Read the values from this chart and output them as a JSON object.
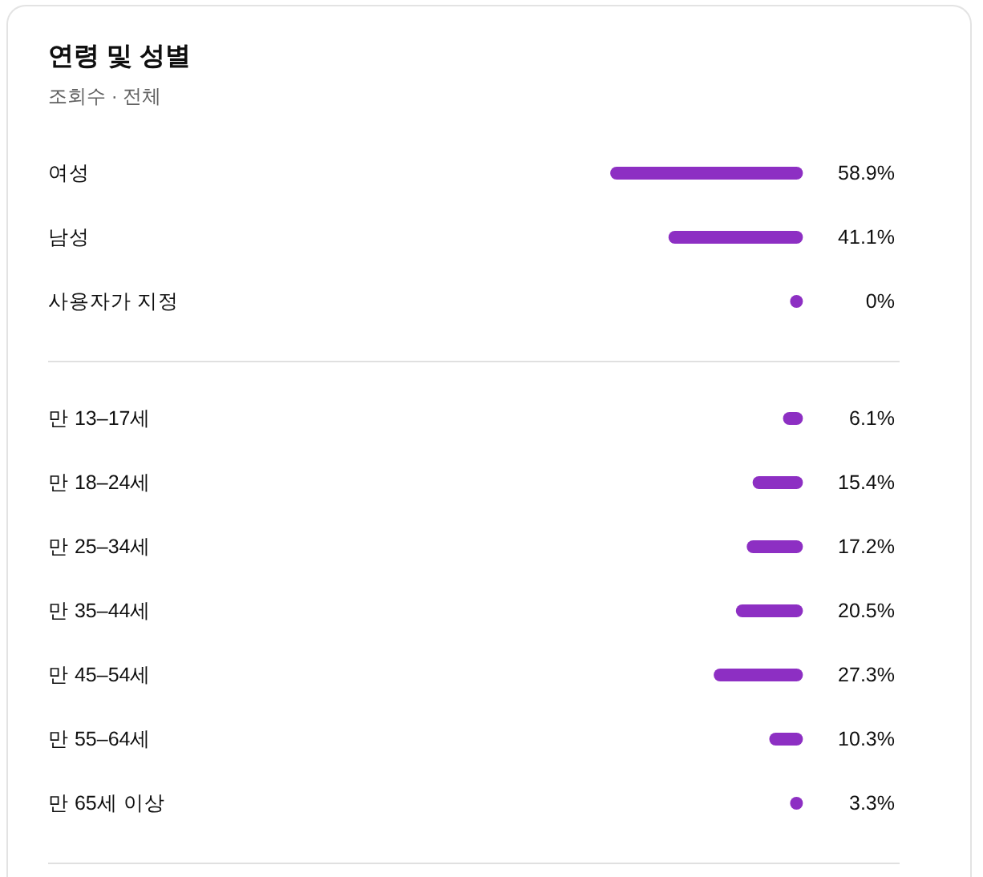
{
  "chart_data": [
    {
      "type": "bar",
      "orientation": "horizontal",
      "title": "연령 및 성별",
      "subtitle": "조회수 · 전체",
      "categories": [
        "여성",
        "남성",
        "사용자가 지정"
      ],
      "values": [
        58.9,
        41.1,
        0
      ],
      "value_labels": [
        "58.9%",
        "41.1%",
        "0%"
      ],
      "color": "#8d2fc3",
      "tick_labels": "y"
    },
    {
      "type": "bar",
      "orientation": "horizontal",
      "categories": [
        "만 13–17세",
        "만 18–24세",
        "만 25–34세",
        "만 35–44세",
        "만 45–54세",
        "만 55–64세",
        "만 65세 이상"
      ],
      "values": [
        6.1,
        15.4,
        17.2,
        20.5,
        27.3,
        10.3,
        3.3
      ],
      "value_labels": [
        "6.1%",
        "15.4%",
        "17.2%",
        "20.5%",
        "27.3%",
        "10.3%",
        "3.3%"
      ],
      "color": "#8d2fc3",
      "tick_labels": "y"
    }
  ]
}
